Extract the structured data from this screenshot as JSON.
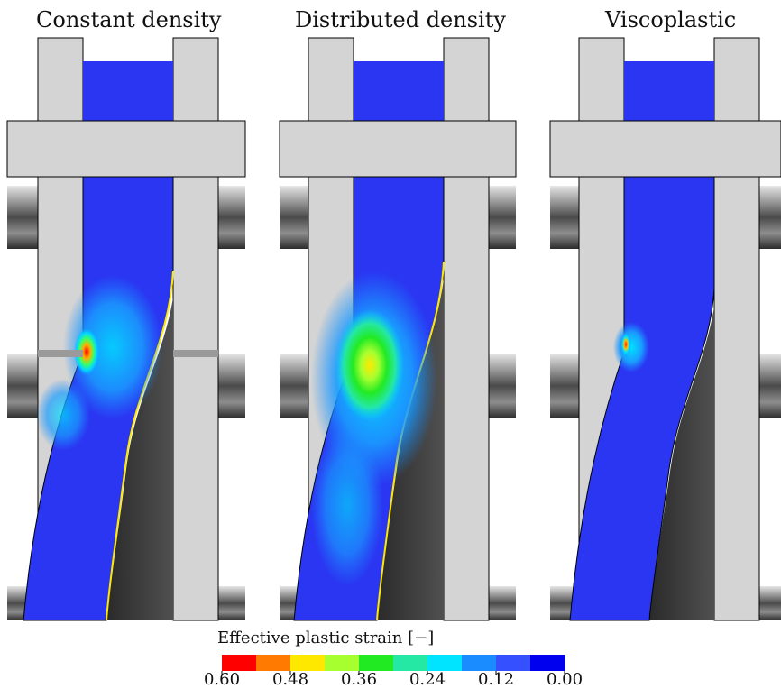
{
  "panels": [
    {
      "title": "Constant density"
    },
    {
      "title": "Distributed density"
    },
    {
      "title": "Viscoplastic"
    }
  ],
  "legend": {
    "title": "Effective plastic strain [−]",
    "ticks": [
      "0.60",
      "0.48",
      "0.36",
      "0.24",
      "0.12",
      "0.00"
    ],
    "colors": [
      "#ff0000",
      "#ff7a00",
      "#ffe800",
      "#a8ff30",
      "#22ea22",
      "#25e8a4",
      "#00e4ff",
      "#1a8cff",
      "#3550ff",
      "#0000ee"
    ]
  },
  "colors": {
    "tool": "#d4d4d4",
    "specimen": "#2a36f2",
    "shadow": "#3a3a3a",
    "outline": "#000000"
  }
}
